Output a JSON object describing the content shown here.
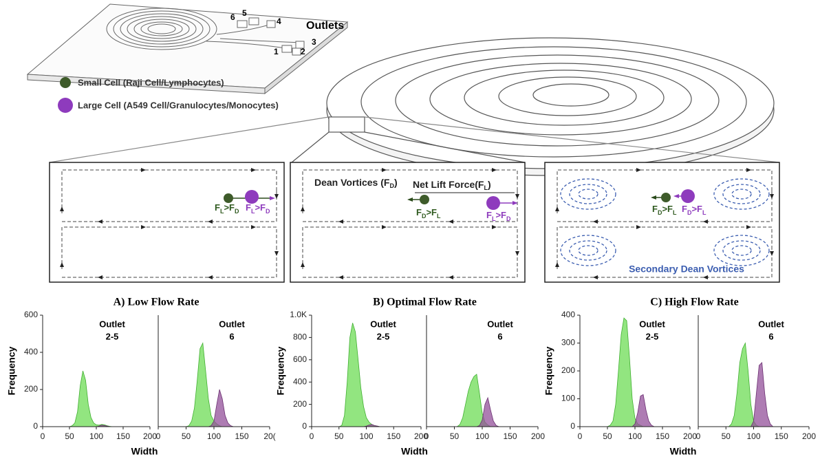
{
  "device": {
    "outlets_label": "Outlets",
    "outlet_numbers": [
      "1",
      "2",
      "3",
      "4",
      "5",
      "6"
    ]
  },
  "legend": [
    {
      "label": "Small Cell (Raji Cell/Lymphocytes)"
    },
    {
      "label": "Large Cell (A549 Cell/Granulocytes/Monocytes)"
    }
  ],
  "panels": [
    {
      "small_force": [
        "F",
        "L",
        ">F",
        "D"
      ],
      "large_force": [
        "F",
        "L",
        ">F",
        "D"
      ]
    },
    {
      "dean_label": [
        "Dean Vortices (F",
        "D",
        ")"
      ],
      "lift_label": [
        "Net Lift Force(F",
        "L",
        ")"
      ],
      "small_force": [
        "F",
        "D",
        ">F",
        "L"
      ],
      "large_force": [
        "F",
        "L",
        ">F",
        "D"
      ]
    },
    {
      "small_force": [
        "F",
        "D",
        ">F",
        "L"
      ],
      "large_force": [
        "F",
        "D",
        ">F",
        "L"
      ],
      "vortices_label": "Secondary Dean Vortices"
    }
  ],
  "chart_data": [
    {
      "type": "area",
      "title": "A) Low Flow Rate",
      "y_label": "Frequency",
      "x_label": "Width",
      "annotation": [
        "Outlet",
        "2-5"
      ],
      "x": [
        40,
        45,
        50,
        55,
        60,
        65,
        70,
        75,
        80,
        85,
        90,
        95,
        100,
        105,
        110,
        115,
        120,
        125,
        130,
        135,
        140,
        145,
        150,
        155,
        160
      ],
      "series": [
        {
          "color": "#7fe06a",
          "values": [
            0,
            0,
            0,
            5,
            20,
            80,
            220,
            300,
            250,
            120,
            50,
            20,
            10,
            8,
            12,
            10,
            5,
            2,
            0,
            0,
            0,
            0,
            0,
            0,
            0
          ]
        },
        {
          "color": "#93509a",
          "values": [
            0,
            0,
            0,
            0,
            0,
            0,
            0,
            0,
            0,
            0,
            0,
            0,
            0,
            3,
            8,
            6,
            3,
            0,
            0,
            0,
            0,
            0,
            0,
            0,
            0
          ]
        }
      ],
      "xlim": [
        0,
        200
      ],
      "xticks": [
        0,
        50,
        100,
        150,
        200
      ],
      "ylim": [
        0,
        600
      ],
      "yticks": [
        0,
        200,
        400,
        600
      ]
    },
    {
      "type": "area",
      "annotation": [
        "Outlet",
        "6"
      ],
      "x": [
        40,
        45,
        50,
        55,
        60,
        65,
        70,
        75,
        80,
        85,
        90,
        95,
        100,
        105,
        110,
        115,
        120,
        125,
        130,
        135,
        140,
        145,
        150,
        155,
        160
      ],
      "series": [
        {
          "color": "#7fe06a",
          "values": [
            0,
            0,
            0,
            5,
            30,
            100,
            250,
            420,
            450,
            300,
            150,
            60,
            30,
            15,
            5,
            0,
            0,
            0,
            0,
            0,
            0,
            0,
            0,
            0,
            0
          ]
        },
        {
          "color": "#93509a",
          "values": [
            0,
            0,
            0,
            0,
            0,
            0,
            0,
            0,
            0,
            0,
            0,
            5,
            30,
            120,
            200,
            150,
            60,
            20,
            5,
            0,
            0,
            0,
            0,
            0,
            0
          ]
        }
      ],
      "xlim": [
        0,
        200
      ],
      "xticks": [
        0,
        50,
        100,
        150,
        {
          "value": 200,
          "label": "20("
        }
      ],
      "ylim": [
        0,
        600
      ]
    },
    {
      "type": "area",
      "title": "B) Optimal Flow Rate",
      "y_label": "Frequency",
      "x_label": "Width",
      "annotation": [
        "Outlet",
        "2-5"
      ],
      "x": [
        40,
        45,
        50,
        55,
        60,
        65,
        70,
        75,
        80,
        85,
        90,
        95,
        100,
        105,
        110,
        115,
        120,
        125,
        130,
        135,
        140,
        145,
        150,
        155,
        160
      ],
      "series": [
        {
          "color": "#7fe06a",
          "values": [
            0,
            0,
            0,
            10,
            100,
            400,
            800,
            930,
            850,
            600,
            350,
            180,
            80,
            40,
            20,
            10,
            5,
            0,
            0,
            0,
            0,
            0,
            0,
            0,
            0
          ]
        },
        {
          "color": "#93509a",
          "values": [
            0,
            0,
            0,
            0,
            0,
            0,
            0,
            0,
            0,
            0,
            0,
            0,
            5,
            15,
            20,
            10,
            5,
            0,
            0,
            0,
            0,
            0,
            0,
            0,
            0
          ]
        }
      ],
      "xlim": [
        0,
        200
      ],
      "xticks": [
        0,
        50,
        100,
        150,
        200
      ],
      "ylim": [
        0,
        1000
      ],
      "yticks": [
        0,
        200,
        400,
        600,
        800,
        {
          "value": 1000,
          "label": "1.0K"
        }
      ]
    },
    {
      "type": "area",
      "annotation": [
        "Outlet",
        "6"
      ],
      "x": [
        40,
        45,
        50,
        55,
        60,
        65,
        70,
        75,
        80,
        85,
        90,
        95,
        100,
        105,
        110,
        115,
        120,
        125,
        130,
        135,
        140,
        145,
        150,
        155,
        160
      ],
      "series": [
        {
          "color": "#7fe06a",
          "values": [
            0,
            0,
            0,
            0,
            20,
            80,
            200,
            320,
            400,
            450,
            470,
            300,
            120,
            40,
            15,
            0,
            0,
            0,
            0,
            0,
            0,
            0,
            0,
            0,
            0
          ]
        },
        {
          "color": "#93509a",
          "values": [
            0,
            0,
            0,
            0,
            0,
            0,
            0,
            0,
            0,
            0,
            0,
            10,
            60,
            200,
            260,
            150,
            50,
            10,
            0,
            0,
            0,
            0,
            0,
            0,
            0
          ]
        }
      ],
      "xlim": [
        0,
        200
      ],
      "xticks": [
        0,
        50,
        100,
        150,
        200
      ],
      "ylim": [
        0,
        1000
      ]
    },
    {
      "type": "area",
      "title": "C) High Flow Rate",
      "y_label": "Frequency",
      "x_label": "Width",
      "annotation": [
        "Outlet",
        "2-5"
      ],
      "x": [
        40,
        45,
        50,
        55,
        60,
        65,
        70,
        75,
        80,
        85,
        90,
        95,
        100,
        105,
        110,
        115,
        120,
        125,
        130,
        135,
        140,
        145,
        150,
        155,
        160
      ],
      "series": [
        {
          "color": "#7fe06a",
          "values": [
            0,
            0,
            0,
            5,
            20,
            80,
            200,
            330,
            390,
            380,
            250,
            100,
            30,
            10,
            5,
            0,
            0,
            0,
            0,
            0,
            0,
            0,
            0,
            0,
            0
          ]
        },
        {
          "color": "#93509a",
          "values": [
            0,
            0,
            0,
            0,
            0,
            0,
            0,
            0,
            0,
            0,
            0,
            0,
            10,
            50,
            110,
            115,
            60,
            20,
            5,
            0,
            0,
            0,
            0,
            0,
            0
          ]
        }
      ],
      "xlim": [
        0,
        200
      ],
      "xticks": [
        0,
        50,
        100,
        150,
        200
      ],
      "ylim": [
        0,
        400
      ],
      "yticks": [
        0,
        100,
        200,
        300,
        400
      ]
    },
    {
      "type": "area",
      "annotation": [
        "Outlet",
        "6"
      ],
      "x": [
        40,
        45,
        50,
        55,
        60,
        65,
        70,
        75,
        80,
        85,
        90,
        95,
        100,
        105,
        110,
        115,
        120,
        125,
        130,
        135,
        140,
        145,
        150,
        155,
        160
      ],
      "series": [
        {
          "color": "#7fe06a",
          "values": [
            0,
            0,
            0,
            0,
            10,
            40,
            120,
            230,
            280,
            300,
            200,
            80,
            20,
            5,
            0,
            0,
            0,
            0,
            0,
            0,
            0,
            0,
            0,
            0,
            0
          ]
        },
        {
          "color": "#93509a",
          "values": [
            0,
            0,
            0,
            0,
            0,
            0,
            0,
            0,
            0,
            0,
            0,
            0,
            20,
            120,
            220,
            230,
            120,
            40,
            10,
            0,
            0,
            0,
            0,
            0,
            0
          ]
        }
      ],
      "xlim": [
        0,
        200
      ],
      "xticks": [
        0,
        50,
        100,
        150,
        200
      ],
      "ylim": [
        0,
        400
      ]
    }
  ]
}
